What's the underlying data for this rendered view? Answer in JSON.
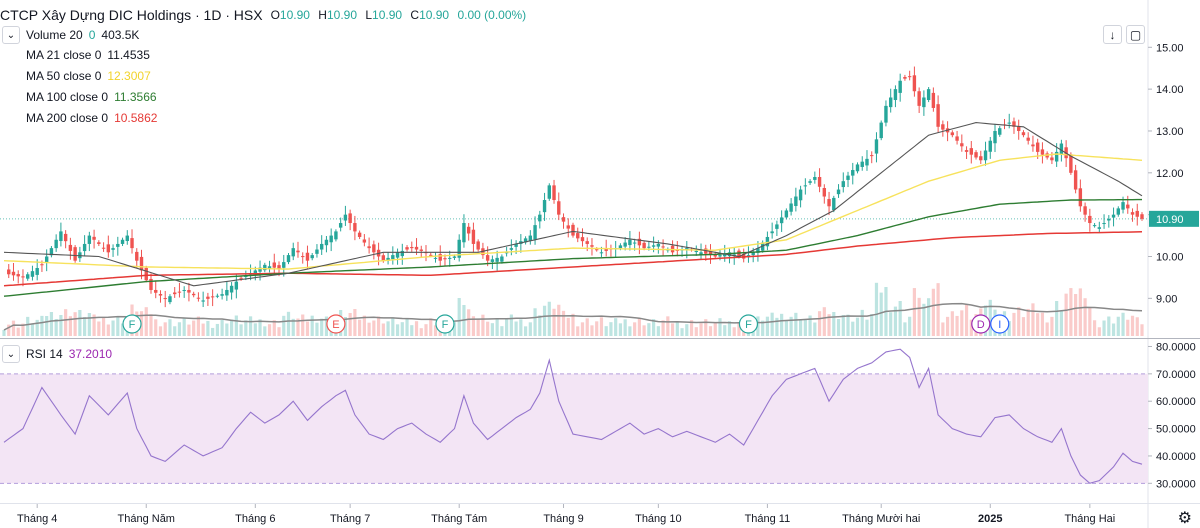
{
  "header": {
    "symbol": "CTCP Xây Dựng DIC Holdings",
    "interval": "1D",
    "exchange": "HSX",
    "open_label": "O",
    "open": "10.90",
    "high_label": "H",
    "high": "10.90",
    "low_label": "L",
    "low": "10.90",
    "close_label": "C",
    "close": "10.90",
    "change": "0.00 (0.00%)"
  },
  "indicators": {
    "volume": {
      "label": "Volume 20",
      "value_a": "0",
      "value_b": "403.5K"
    },
    "ma21": {
      "label": "MA 21 close 0",
      "value": "11.4535",
      "color": "#555555"
    },
    "ma50": {
      "label": "MA 50 close 0",
      "value": "12.3007",
      "color": "#f7e25c"
    },
    "ma100": {
      "label": "MA 100 close 0",
      "value": "11.3566",
      "color": "#2e7d32"
    },
    "ma200": {
      "label": "MA 200 close 0",
      "value": "10.5862",
      "color": "#e53935"
    },
    "rsi": {
      "label": "RSI 14",
      "value": "37.2010",
      "color": "#9c27b0"
    }
  },
  "chevron_icon": "chevron-down-icon",
  "toolbar": {
    "download_icon": "download-icon",
    "fullscreen_icon": "maximize-icon"
  },
  "settings_icon": "gear-icon",
  "event_markers": [
    "F",
    "E",
    "F",
    "F",
    "D",
    "I"
  ],
  "colors": {
    "up": "#26a69a",
    "down": "#ef5350",
    "rsi_band": "#f3e5f5",
    "last_price_bg": "#26a69a"
  },
  "chart_data": [
    {
      "type": "candlestick",
      "title": "CTCP Xây Dựng DIC Holdings · 1D · HSX",
      "x_labels": [
        "Tháng 4",
        "Tháng Năm",
        "Tháng 6",
        "Tháng 7",
        "Tháng Tám",
        "Tháng 9",
        "Tháng 10",
        "Tháng 11",
        "Tháng Mười hai",
        "2025",
        "Tháng Hai"
      ],
      "y_ticks": [
        "15.00",
        "14.00",
        "13.00",
        "12.00",
        "11.00",
        "10.00",
        "9.00"
      ],
      "ylim": [
        8.1,
        15.7
      ],
      "last_price": "10.90",
      "close_path": [
        [
          0,
          9.6
        ],
        [
          4,
          9.5
        ],
        [
          8,
          9.8
        ],
        [
          12,
          10.6
        ],
        [
          15,
          9.9
        ],
        [
          18,
          10.5
        ],
        [
          22,
          10.1
        ],
        [
          26,
          10.5
        ],
        [
          28,
          9.9
        ],
        [
          31,
          9.2
        ],
        [
          34,
          9.0
        ],
        [
          38,
          9.2
        ],
        [
          42,
          8.95
        ],
        [
          46,
          9.1
        ],
        [
          49,
          9.4
        ],
        [
          52,
          9.6
        ],
        [
          55,
          9.8
        ],
        [
          58,
          9.7
        ],
        [
          61,
          10.2
        ],
        [
          64,
          9.9
        ],
        [
          67,
          10.3
        ],
        [
          70,
          10.6
        ],
        [
          72,
          11.0
        ],
        [
          74,
          10.6
        ],
        [
          77,
          10.2
        ],
        [
          80,
          9.9
        ],
        [
          83,
          10.1
        ],
        [
          86,
          10.2
        ],
        [
          89,
          10.1
        ],
        [
          92,
          9.9
        ],
        [
          95,
          10.0
        ],
        [
          97,
          10.8
        ],
        [
          99,
          10.3
        ],
        [
          102,
          9.9
        ],
        [
          105,
          10.0
        ],
        [
          108,
          10.3
        ],
        [
          111,
          10.5
        ],
        [
          113,
          11.0
        ],
        [
          115,
          11.7
        ],
        [
          117,
          11.0
        ],
        [
          120,
          10.5
        ],
        [
          123,
          10.3
        ],
        [
          126,
          10.1
        ],
        [
          129,
          10.2
        ],
        [
          132,
          10.4
        ],
        [
          135,
          10.2
        ],
        [
          138,
          10.3
        ],
        [
          141,
          10.1
        ],
        [
          144,
          10.2
        ],
        [
          147,
          10.1
        ],
        [
          150,
          10.0
        ],
        [
          153,
          10.1
        ],
        [
          156,
          9.95
        ],
        [
          159,
          10.2
        ],
        [
          162,
          10.6
        ],
        [
          165,
          11.1
        ],
        [
          168,
          11.6
        ],
        [
          171,
          11.9
        ],
        [
          174,
          11.2
        ],
        [
          177,
          11.8
        ],
        [
          180,
          12.2
        ],
        [
          183,
          12.4
        ],
        [
          186,
          13.6
        ],
        [
          189,
          14.2
        ],
        [
          191,
          14.3
        ],
        [
          193,
          13.6
        ],
        [
          195,
          14.0
        ],
        [
          197,
          13.1
        ],
        [
          200,
          12.9
        ],
        [
          203,
          12.5
        ],
        [
          206,
          12.3
        ],
        [
          209,
          13.0
        ],
        [
          212,
          13.2
        ],
        [
          215,
          12.9
        ],
        [
          218,
          12.5
        ],
        [
          221,
          12.3
        ],
        [
          223,
          12.7
        ],
        [
          225,
          12.0
        ],
        [
          227,
          11.2
        ],
        [
          229,
          10.8
        ],
        [
          231,
          10.7
        ],
        [
          234,
          11.0
        ],
        [
          236,
          11.3
        ],
        [
          238,
          11.0
        ],
        [
          240,
          10.9
        ]
      ],
      "ma21_path": [
        [
          0,
          10.1
        ],
        [
          20,
          10.0
        ],
        [
          40,
          9.3
        ],
        [
          60,
          9.6
        ],
        [
          80,
          10.1
        ],
        [
          100,
          10.1
        ],
        [
          120,
          10.6
        ],
        [
          140,
          10.3
        ],
        [
          155,
          10.0
        ],
        [
          165,
          10.5
        ],
        [
          175,
          11.1
        ],
        [
          185,
          12.0
        ],
        [
          195,
          12.9
        ],
        [
          205,
          13.2
        ],
        [
          215,
          13.1
        ],
        [
          225,
          12.4
        ],
        [
          235,
          11.8
        ],
        [
          240,
          11.45
        ]
      ],
      "ma50_path": [
        [
          0,
          9.9
        ],
        [
          30,
          9.75
        ],
        [
          60,
          9.7
        ],
        [
          90,
          10.0
        ],
        [
          120,
          10.2
        ],
        [
          150,
          10.15
        ],
        [
          165,
          10.4
        ],
        [
          180,
          11.1
        ],
        [
          195,
          11.8
        ],
        [
          210,
          12.3
        ],
        [
          222,
          12.45
        ],
        [
          240,
          12.3
        ]
      ],
      "ma100_path": [
        [
          0,
          9.05
        ],
        [
          30,
          9.4
        ],
        [
          60,
          9.6
        ],
        [
          90,
          9.75
        ],
        [
          120,
          9.95
        ],
        [
          150,
          10.05
        ],
        [
          165,
          10.15
        ],
        [
          180,
          10.5
        ],
        [
          195,
          10.95
        ],
        [
          210,
          11.25
        ],
        [
          225,
          11.35
        ],
        [
          240,
          11.36
        ]
      ],
      "ma200_path": [
        [
          0,
          9.3
        ],
        [
          30,
          9.55
        ],
        [
          60,
          9.6
        ],
        [
          90,
          9.55
        ],
        [
          120,
          9.75
        ],
        [
          150,
          9.95
        ],
        [
          165,
          10.05
        ],
        [
          180,
          10.25
        ],
        [
          200,
          10.45
        ],
        [
          220,
          10.55
        ],
        [
          240,
          10.59
        ]
      ]
    },
    {
      "type": "line",
      "title": "RSI 14",
      "y_ticks": [
        "80.0000",
        "70.0000",
        "60.0000",
        "50.0000",
        "40.0000",
        "30.0000"
      ],
      "ylim": [
        25,
        82
      ],
      "band": [
        30,
        70
      ],
      "values": [
        [
          0,
          45
        ],
        [
          4,
          50
        ],
        [
          8,
          65
        ],
        [
          12,
          55
        ],
        [
          15,
          48
        ],
        [
          18,
          62
        ],
        [
          22,
          55
        ],
        [
          26,
          63
        ],
        [
          28,
          50
        ],
        [
          31,
          40
        ],
        [
          34,
          38
        ],
        [
          38,
          44
        ],
        [
          42,
          40
        ],
        [
          46,
          43
        ],
        [
          49,
          50
        ],
        [
          52,
          56
        ],
        [
          55,
          52
        ],
        [
          58,
          55
        ],
        [
          61,
          60
        ],
        [
          64,
          53
        ],
        [
          67,
          58
        ],
        [
          70,
          62
        ],
        [
          72,
          64
        ],
        [
          74,
          55
        ],
        [
          77,
          48
        ],
        [
          80,
          46
        ],
        [
          83,
          50
        ],
        [
          86,
          52
        ],
        [
          89,
          48
        ],
        [
          92,
          45
        ],
        [
          95,
          50
        ],
        [
          97,
          62
        ],
        [
          99,
          52
        ],
        [
          102,
          46
        ],
        [
          105,
          50
        ],
        [
          108,
          54
        ],
        [
          111,
          57
        ],
        [
          113,
          63
        ],
        [
          115,
          75
        ],
        [
          117,
          60
        ],
        [
          120,
          48
        ],
        [
          123,
          47
        ],
        [
          126,
          46
        ],
        [
          129,
          49
        ],
        [
          132,
          52
        ],
        [
          135,
          48
        ],
        [
          138,
          50
        ],
        [
          141,
          47
        ],
        [
          144,
          49
        ],
        [
          147,
          47
        ],
        [
          150,
          45
        ],
        [
          153,
          48
        ],
        [
          156,
          44
        ],
        [
          159,
          53
        ],
        [
          162,
          62
        ],
        [
          165,
          68
        ],
        [
          168,
          70
        ],
        [
          171,
          72
        ],
        [
          174,
          60
        ],
        [
          177,
          68
        ],
        [
          180,
          72
        ],
        [
          183,
          74
        ],
        [
          186,
          78
        ],
        [
          189,
          79
        ],
        [
          191,
          76
        ],
        [
          193,
          65
        ],
        [
          195,
          72
        ],
        [
          197,
          55
        ],
        [
          200,
          50
        ],
        [
          203,
          48
        ],
        [
          206,
          47
        ],
        [
          209,
          54
        ],
        [
          212,
          55
        ],
        [
          215,
          50
        ],
        [
          218,
          47
        ],
        [
          221,
          45
        ],
        [
          223,
          50
        ],
        [
          225,
          40
        ],
        [
          227,
          33
        ],
        [
          229,
          30
        ],
        [
          231,
          31
        ],
        [
          234,
          36
        ],
        [
          236,
          41
        ],
        [
          238,
          38
        ],
        [
          240,
          37
        ]
      ]
    }
  ]
}
